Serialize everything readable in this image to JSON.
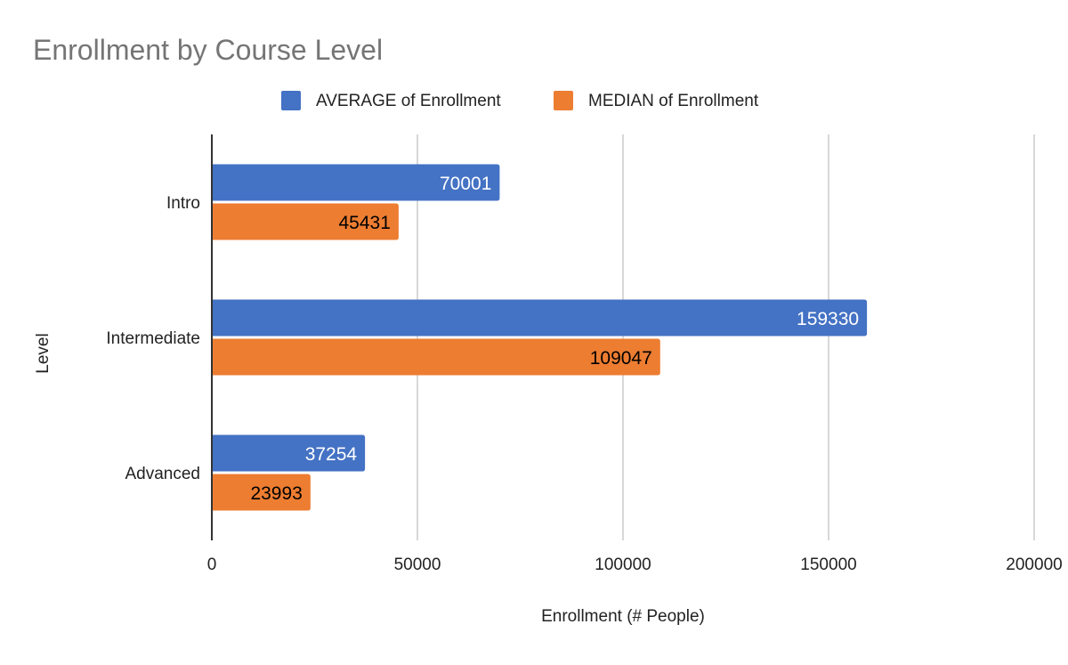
{
  "chart_data": {
    "type": "bar",
    "orientation": "horizontal",
    "title": "Enrollment by Course Level",
    "xlabel": "Enrollment (# People)",
    "ylabel": "Level",
    "categories": [
      "Intro",
      "Intermediate",
      "Advanced"
    ],
    "series": [
      {
        "name": "AVERAGE of Enrollment",
        "color": "#4472C4",
        "label_color": "#ffffff",
        "values": [
          70001,
          159330,
          37254
        ]
      },
      {
        "name": "MEDIAN of Enrollment",
        "color": "#ED7D31",
        "label_color": "#000000",
        "values": [
          45431,
          109047,
          23993
        ]
      }
    ],
    "xlim": [
      0,
      200000
    ],
    "xticks": [
      0,
      50000,
      100000,
      150000,
      200000
    ],
    "xtick_labels": [
      "0",
      "50000",
      "100000",
      "150000",
      "200000"
    ],
    "grid": true,
    "legend_position": "top-center",
    "data_labels": [
      "70001",
      "45431",
      "159330",
      "109047",
      "37254",
      "23993"
    ]
  }
}
